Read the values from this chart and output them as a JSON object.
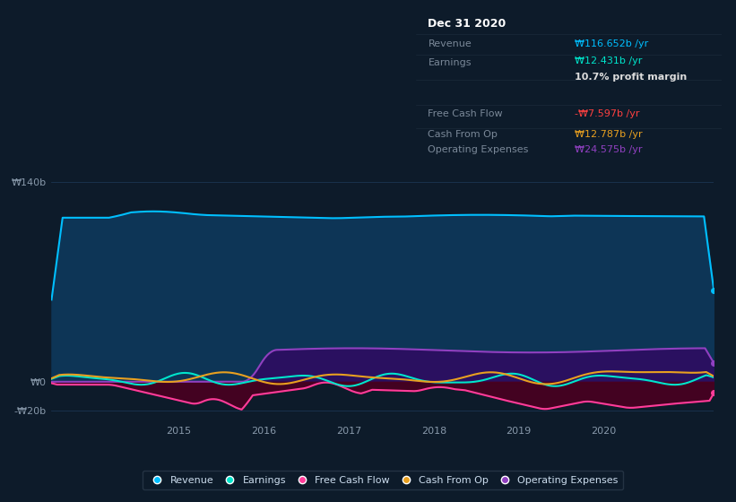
{
  "bg_color": "#0d1b2a",
  "plot_bg_color": "#0d1b2a",
  "grid_color": "#1e3a5f",
  "ylim": [
    -28,
    155
  ],
  "xlim": [
    2013.5,
    2021.3
  ],
  "ytick_vals": [
    -20,
    0,
    140
  ],
  "ytick_labels": [
    "-₩20b",
    "₩0",
    "₩140b"
  ],
  "xtick_vals": [
    2015,
    2016,
    2017,
    2018,
    2019,
    2020
  ],
  "xtick_labels": [
    "2015",
    "2016",
    "2017",
    "2018",
    "2019",
    "2020"
  ],
  "revenue_color": "#00bfff",
  "revenue_fill": "#0d3556",
  "earnings_color": "#00e5cc",
  "fcf_color": "#ff3d9a",
  "fcf_fill": "#4a0020",
  "cashop_color": "#e8a020",
  "opex_color": "#9040c0",
  "opex_fill": "#2a1060",
  "legend": [
    {
      "label": "Revenue",
      "color": "#00bfff"
    },
    {
      "label": "Earnings",
      "color": "#00e5cc"
    },
    {
      "label": "Free Cash Flow",
      "color": "#ff3d9a"
    },
    {
      "label": "Cash From Op",
      "color": "#e8a020"
    },
    {
      "label": "Operating Expenses",
      "color": "#9040c0"
    }
  ],
  "tooltip_title": "Dec 31 2020",
  "tooltip_rows": [
    {
      "label": "Revenue",
      "value": "₩116.652b /yr",
      "color": "#00bfff"
    },
    {
      "label": "Earnings",
      "value": "₩12.431b /yr",
      "color": "#00e5cc"
    },
    {
      "label": "profit_margin",
      "value": "10.7% profit margin",
      "color": "#dddddd"
    },
    {
      "label": "Free Cash Flow",
      "value": "-₩7.597b /yr",
      "color": "#ff4040"
    },
    {
      "label": "Cash From Op",
      "value": "₩12.787b /yr",
      "color": "#e8a020"
    },
    {
      "label": "Operating Expenses",
      "value": "₩24.575b /yr",
      "color": "#9040c0"
    }
  ]
}
